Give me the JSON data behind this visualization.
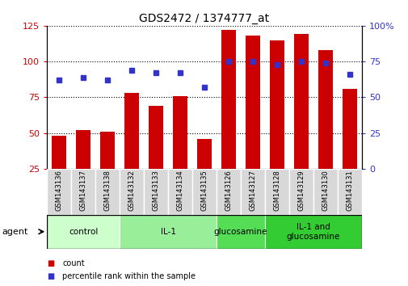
{
  "title": "GDS2472 / 1374777_at",
  "samples": [
    "GSM143136",
    "GSM143137",
    "GSM143138",
    "GSM143132",
    "GSM143133",
    "GSM143134",
    "GSM143135",
    "GSM143126",
    "GSM143127",
    "GSM143128",
    "GSM143129",
    "GSM143130",
    "GSM143131"
  ],
  "counts": [
    48,
    52,
    51,
    78,
    69,
    76,
    46,
    122,
    118,
    115,
    119,
    108,
    81
  ],
  "percentiles": [
    62,
    64,
    62,
    69,
    67,
    67,
    57,
    75,
    75,
    73,
    75,
    74,
    66
  ],
  "bar_color": "#cc0000",
  "dot_color": "#3333cc",
  "ylim_left": [
    25,
    125
  ],
  "ylim_right": [
    0,
    100
  ],
  "yticks_left": [
    25,
    50,
    75,
    100,
    125
  ],
  "yticks_right": [
    0,
    25,
    50,
    75,
    100
  ],
  "groups": [
    {
      "label": "control",
      "start": 0,
      "end": 3,
      "color": "#ccffcc"
    },
    {
      "label": "IL-1",
      "start": 3,
      "end": 7,
      "color": "#99ee99"
    },
    {
      "label": "glucosamine",
      "start": 7,
      "end": 9,
      "color": "#55dd55"
    },
    {
      "label": "IL-1 and\nglucosamine",
      "start": 9,
      "end": 13,
      "color": "#33cc33"
    }
  ],
  "agent_label": "agent",
  "legend_count_label": "count",
  "legend_pct_label": "percentile rank within the sample"
}
